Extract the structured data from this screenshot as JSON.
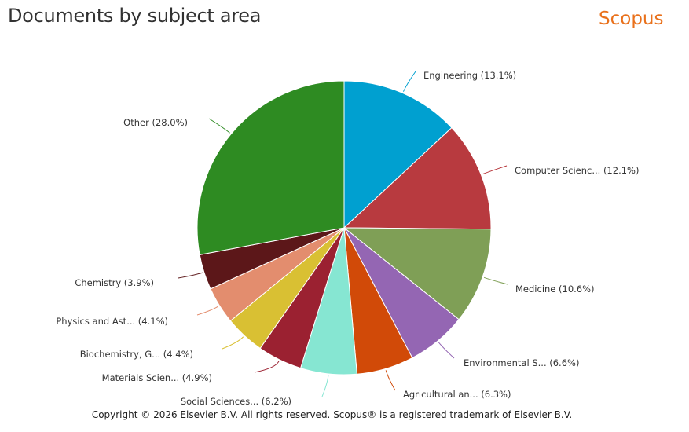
{
  "header": {
    "title": "Documents by subject area",
    "brand": "Scopus"
  },
  "footer": {
    "copyright": "Copyright © 2026 Elsevier B.V. All rights reserved. Scopus® is a registered trademark of Elsevier B.V."
  },
  "chart_data": {
    "type": "pie",
    "title": "Documents by subject area",
    "start_angle_deg": 0,
    "direction": "clockwise",
    "legend": "none",
    "slices": [
      {
        "label": "Engineering (13.1%)",
        "value": 13.1,
        "color": "#00a0d0"
      },
      {
        "label": "Computer Scienc... (12.1%)",
        "value": 12.1,
        "color": "#b83a3f"
      },
      {
        "label": "Medicine (10.6%)",
        "value": 10.6,
        "color": "#7f9f56"
      },
      {
        "label": "Environmental S... (6.6%)",
        "value": 6.6,
        "color": "#9466b3"
      },
      {
        "label": "Agricultural an... (6.3%)",
        "value": 6.3,
        "color": "#d14a08"
      },
      {
        "label": "Social Sciences... (6.2%)",
        "value": 6.2,
        "color": "#86e6d2"
      },
      {
        "label": "Materials Scien... (4.9%)",
        "value": 4.9,
        "color": "#9b2131"
      },
      {
        "label": "Biochemistry, G... (4.4%)",
        "value": 4.4,
        "color": "#d9c033"
      },
      {
        "label": "Physics and Ast... (4.1%)",
        "value": 4.1,
        "color": "#e38d6e"
      },
      {
        "label": "Chemistry (3.9%)",
        "value": 3.9,
        "color": "#5c1719"
      },
      {
        "label": "Other (28.0%)",
        "value": 28.0,
        "color": "#2e8b22"
      }
    ]
  }
}
